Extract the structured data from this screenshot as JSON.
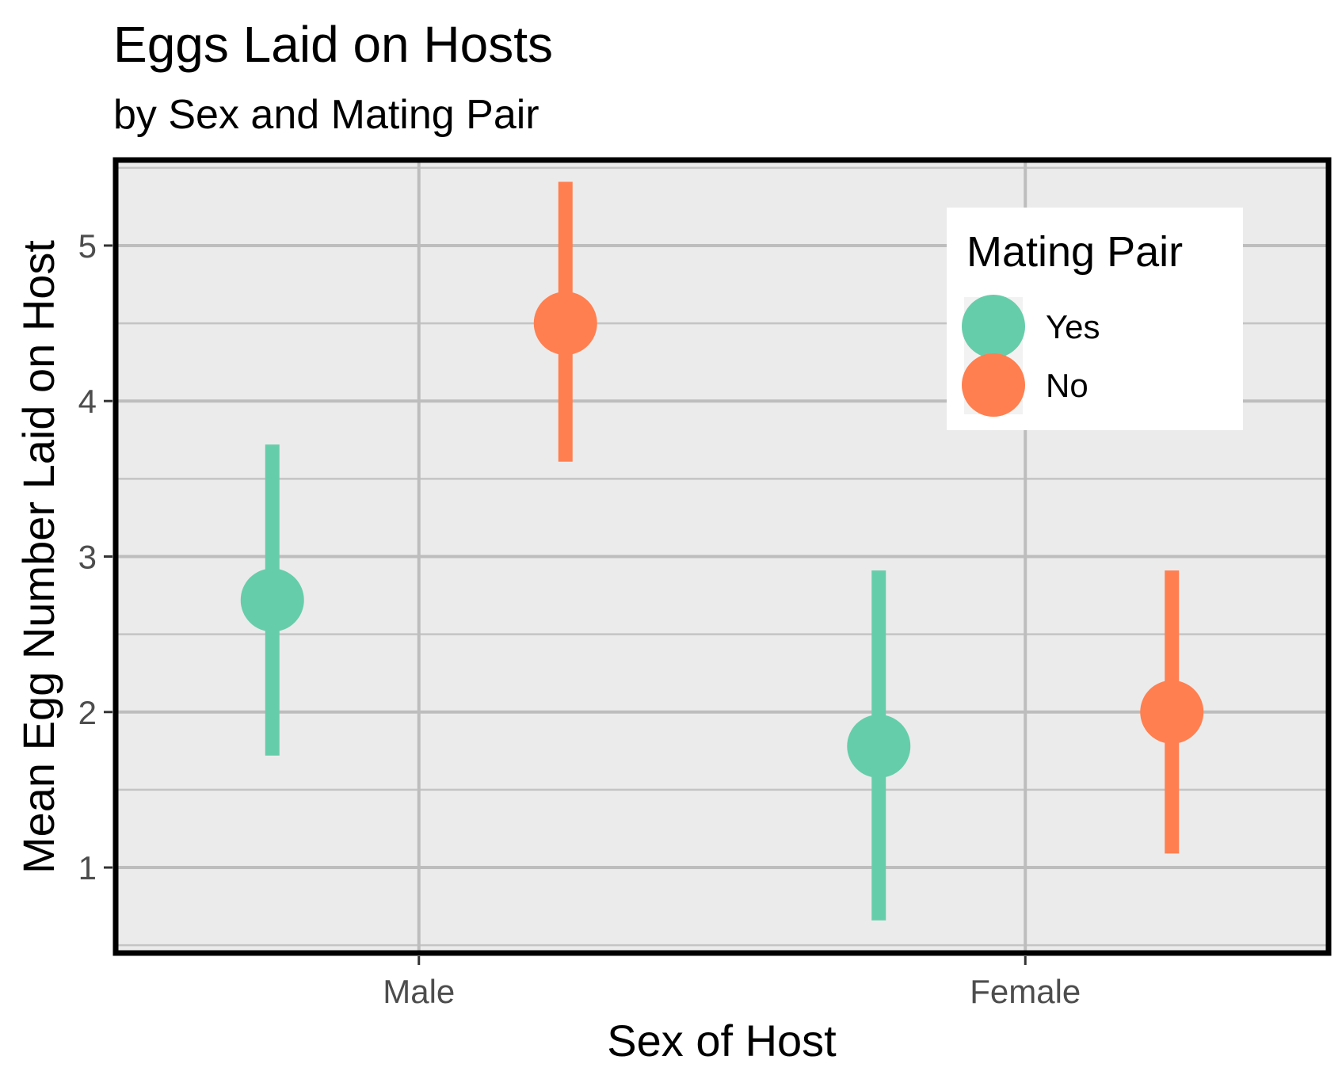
{
  "chart_data": {
    "type": "scatter",
    "title": "Eggs Laid on Hosts",
    "subtitle": "by Sex and Mating Pair",
    "xlabel": "Sex of Host",
    "ylabel": "Mean Egg Number Laid on Host",
    "categories": [
      "Male",
      "Female"
    ],
    "ylim": [
      0.45,
      5.55
    ],
    "yticks": [
      "1",
      "2",
      "3",
      "4",
      "5"
    ],
    "grid": true,
    "legend": {
      "title": "Mating Pair",
      "position": "top-right",
      "entries": [
        {
          "label": "Yes",
          "color": "#66cdaa"
        },
        {
          "label": "No",
          "color": "#ff7f50"
        }
      ]
    },
    "series": [
      {
        "name": "Yes",
        "color": "#66cdaa",
        "points": [
          {
            "x": "Male",
            "y": 2.72,
            "ymin": 1.72,
            "ymax": 3.72
          },
          {
            "x": "Female",
            "y": 1.78,
            "ymin": 0.66,
            "ymax": 2.91
          }
        ]
      },
      {
        "name": "No",
        "color": "#ff7f50",
        "points": [
          {
            "x": "Male",
            "y": 4.5,
            "ymin": 3.61,
            "ymax": 5.41
          },
          {
            "x": "Female",
            "y": 2.0,
            "ymin": 1.09,
            "ymax": 2.91
          }
        ]
      }
    ]
  }
}
